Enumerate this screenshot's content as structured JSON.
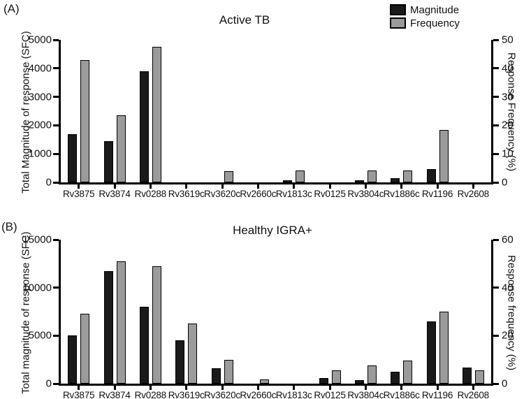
{
  "colors": {
    "magnitude": "#1a1a1a",
    "frequency": "#9b9b9b",
    "axis": "#000000",
    "background": "#ffffff"
  },
  "legend": {
    "position": "top-right",
    "items": [
      {
        "label": "Magnitude",
        "color": "#1a1a1a"
      },
      {
        "label": "Frequency",
        "color": "#9b9b9b"
      }
    ]
  },
  "chart_data": [
    {
      "type": "bar",
      "panel_label": "(A)",
      "title": "Active TB",
      "categories": [
        "Rv3875",
        "Rv3874",
        "Rv0288",
        "Rv3619c",
        "Rv3620c",
        "Rv2660c",
        "Rv1813c",
        "Rv0125",
        "Rv3804c",
        "Rv1886c",
        "Rv1196",
        "Rv2608"
      ],
      "series": [
        {
          "name": "Magnitude",
          "axis": "left",
          "color": "#1a1a1a",
          "values": [
            1700,
            1450,
            3900,
            0,
            0,
            0,
            75,
            0,
            75,
            150,
            475,
            0
          ]
        },
        {
          "name": "Frequency",
          "axis": "right",
          "color": "#9b9b9b",
          "values": [
            43,
            23.5,
            47.5,
            0,
            4,
            0,
            4.2,
            0,
            4.2,
            4.2,
            18.5,
            0
          ]
        }
      ],
      "ylabel": "Total Magnitude of response (SFC)",
      "y2label": "Response Frequency (%)",
      "ylim": [
        0,
        5000
      ],
      "yticks": [
        0,
        1000,
        2000,
        3000,
        4000,
        5000
      ],
      "y2lim": [
        0,
        50
      ],
      "y2ticks": [
        0,
        10,
        20,
        30,
        40,
        50
      ],
      "grid": false,
      "legend_position": "top-right"
    },
    {
      "type": "bar",
      "panel_label": "(B)",
      "title": "Healthy IGRA+",
      "categories": [
        "Rv3875",
        "Rv3874",
        "Rv0288",
        "Rv3619c",
        "Rv3620c",
        "Rv2660c",
        "Rv1813c",
        "Rv0125",
        "Rv3804c",
        "Rv1886c",
        "Rv1196",
        "Rv2608"
      ],
      "series": [
        {
          "name": "Magnitude",
          "axis": "left",
          "color": "#1a1a1a",
          "values": [
            5000,
            11700,
            8000,
            4500,
            1600,
            0,
            0,
            600,
            400,
            1250,
            6500,
            1650
          ]
        },
        {
          "name": "Frequency",
          "axis": "right",
          "color": "#9b9b9b",
          "values": [
            29,
            51,
            49,
            25,
            10,
            1.7,
            0,
            5.5,
            7.5,
            9.5,
            30,
            5.5
          ]
        }
      ],
      "ylabel": "Total magnitude of response (SFC)",
      "y2label": "Response frequency (%)",
      "ylim": [
        0,
        15000
      ],
      "yticks": [
        0,
        5000,
        10000,
        15000
      ],
      "y2lim": [
        0,
        60
      ],
      "y2ticks": [
        0,
        20,
        40,
        60
      ],
      "grid": false,
      "legend_position": "none"
    }
  ]
}
